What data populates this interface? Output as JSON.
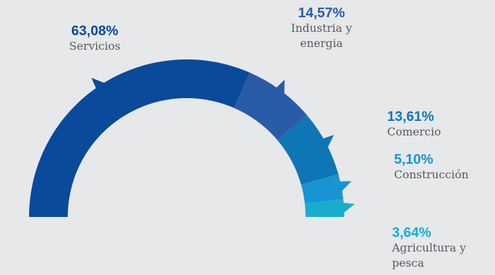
{
  "chart_data": {
    "type": "pie",
    "variant": "semi-donut",
    "title": "",
    "categories": [
      "Servicios",
      "Industria y energia",
      "Comercio",
      "Construcción",
      "Agricultura y pesca"
    ],
    "values": [
      63.08,
      14.57,
      13.61,
      5.1,
      3.64
    ],
    "value_labels": [
      "63,08%",
      "14,57%",
      "13,61%",
      "5,10%",
      "3,64%"
    ],
    "colors": [
      "#0a4a9a",
      "#2a5ba8",
      "#0f76b5",
      "#1795d3",
      "#18aecb"
    ],
    "legend": "none"
  },
  "labels": [
    {
      "pct": "63,08%",
      "lines": [
        "Servicios"
      ],
      "pct_color": "#0a4a9a"
    },
    {
      "pct": "14,57%",
      "lines": [
        "Industria y",
        "energia"
      ],
      "pct_color": "#2a5ba8"
    },
    {
      "pct": "13,61%",
      "lines": [
        "Comercio"
      ],
      "pct_color": "#0f76b5"
    },
    {
      "pct": "5,10%",
      "lines": [
        "Construcción"
      ],
      "pct_color": "#1795d3"
    },
    {
      "pct": "3,64%",
      "lines": [
        "Agricultura y",
        "pesca"
      ],
      "pct_color": "#18aecb"
    }
  ]
}
